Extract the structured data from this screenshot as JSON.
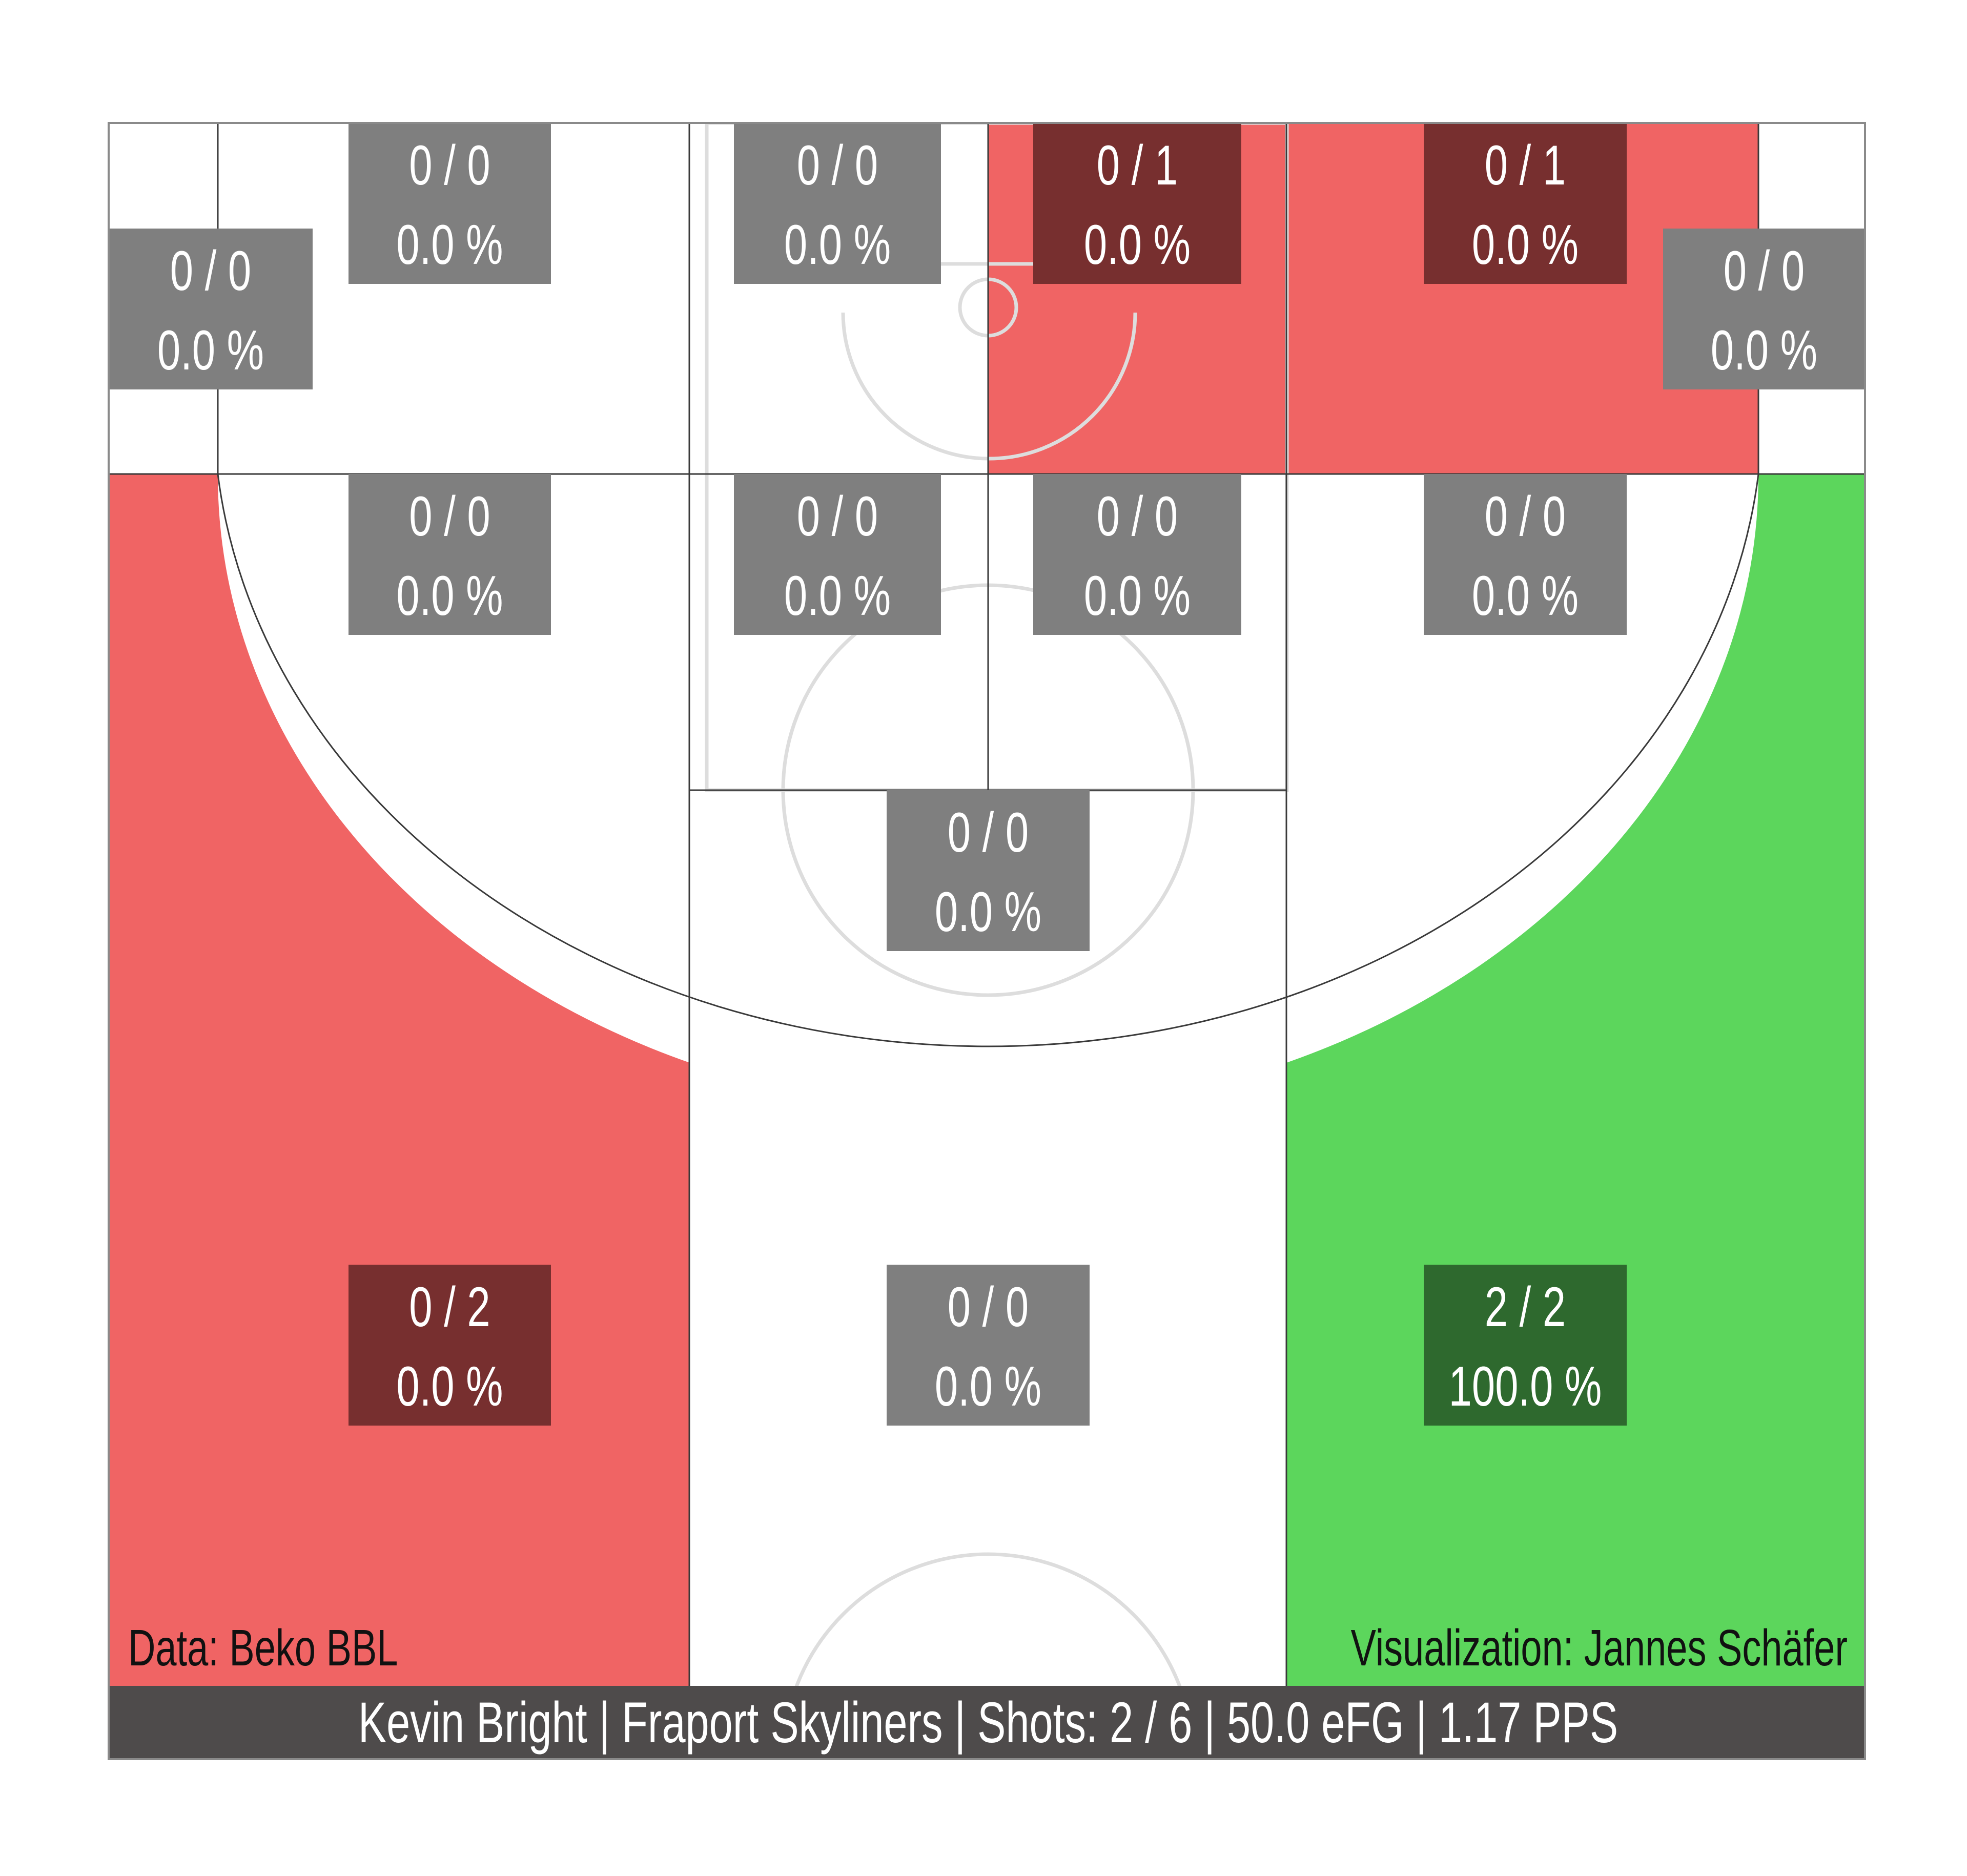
{
  "chart_data": {
    "type": "heatmap",
    "title": "",
    "xlabel": "",
    "ylabel": "",
    "zones": [
      {
        "id": "corner-left",
        "made": 0,
        "attempts": 0,
        "made_attempts": "0 / 0",
        "percentage": "0.0 %",
        "fill_color": "#ffffff"
      },
      {
        "id": "mid-left-baseline",
        "made": 0,
        "attempts": 0,
        "made_attempts": "0 / 0",
        "percentage": "0.0 %",
        "fill_color": "#ffffff"
      },
      {
        "id": "paint-left-baseline",
        "made": 0,
        "attempts": 0,
        "made_attempts": "0 / 0",
        "percentage": "0.0 %",
        "fill_color": "#ffffff"
      },
      {
        "id": "paint-right-baseline",
        "made": 0,
        "attempts": 1,
        "made_attempts": "0 / 1",
        "percentage": "0.0 %",
        "fill_color": "#f06464"
      },
      {
        "id": "mid-right-baseline",
        "made": 0,
        "attempts": 1,
        "made_attempts": "0 / 1",
        "percentage": "0.0 %",
        "fill_color": "#f06464"
      },
      {
        "id": "corner-right",
        "made": 0,
        "attempts": 0,
        "made_attempts": "0 / 0",
        "percentage": "0.0 %",
        "fill_color": "#ffffff"
      },
      {
        "id": "mid-left-wing",
        "made": 0,
        "attempts": 0,
        "made_attempts": "0 / 0",
        "percentage": "0.0 %",
        "fill_color": "#ffffff"
      },
      {
        "id": "paint-left-upper",
        "made": 0,
        "attempts": 0,
        "made_attempts": "0 / 0",
        "percentage": "0.0 %",
        "fill_color": "#ffffff"
      },
      {
        "id": "paint-right-upper",
        "made": 0,
        "attempts": 0,
        "made_attempts": "0 / 0",
        "percentage": "0.0 %",
        "fill_color": "#ffffff"
      },
      {
        "id": "mid-right-wing",
        "made": 0,
        "attempts": 0,
        "made_attempts": "0 / 0",
        "percentage": "0.0 %",
        "fill_color": "#ffffff"
      },
      {
        "id": "mid-top",
        "made": 0,
        "attempts": 0,
        "made_attempts": "0 / 0",
        "percentage": "0.0 %",
        "fill_color": "#ffffff"
      },
      {
        "id": "three-left-wing",
        "made": 0,
        "attempts": 2,
        "made_attempts": "0 / 2",
        "percentage": "0.0 %",
        "fill_color": "#f06464"
      },
      {
        "id": "three-top",
        "made": 0,
        "attempts": 0,
        "made_attempts": "0 / 0",
        "percentage": "0.0 %",
        "fill_color": "#ffffff"
      },
      {
        "id": "three-right-wing",
        "made": 2,
        "attempts": 2,
        "made_attempts": "2 / 2",
        "percentage": "100.0 %",
        "fill_color": "#5cd65c"
      }
    ],
    "data_source": "Data: Beko BBL",
    "credit": "Visualization: Jannes Schäfer",
    "summary": "Kevin Bright | Fraport Skyliners | Shots: 2 / 6 | 50.0 eFG | 1.17 PPS"
  },
  "colors": {
    "cold": "#f06464",
    "hot": "#5cd65c",
    "neutral": "#ffffff",
    "label_box_neutral": "#7f7f7f",
    "label_box_cold": "#772f2f",
    "label_box_hot": "#2e692e",
    "footer_bar": "#4e4b4b",
    "court_lines": "#dddddd",
    "zone_edges": "#3a3a3a"
  }
}
